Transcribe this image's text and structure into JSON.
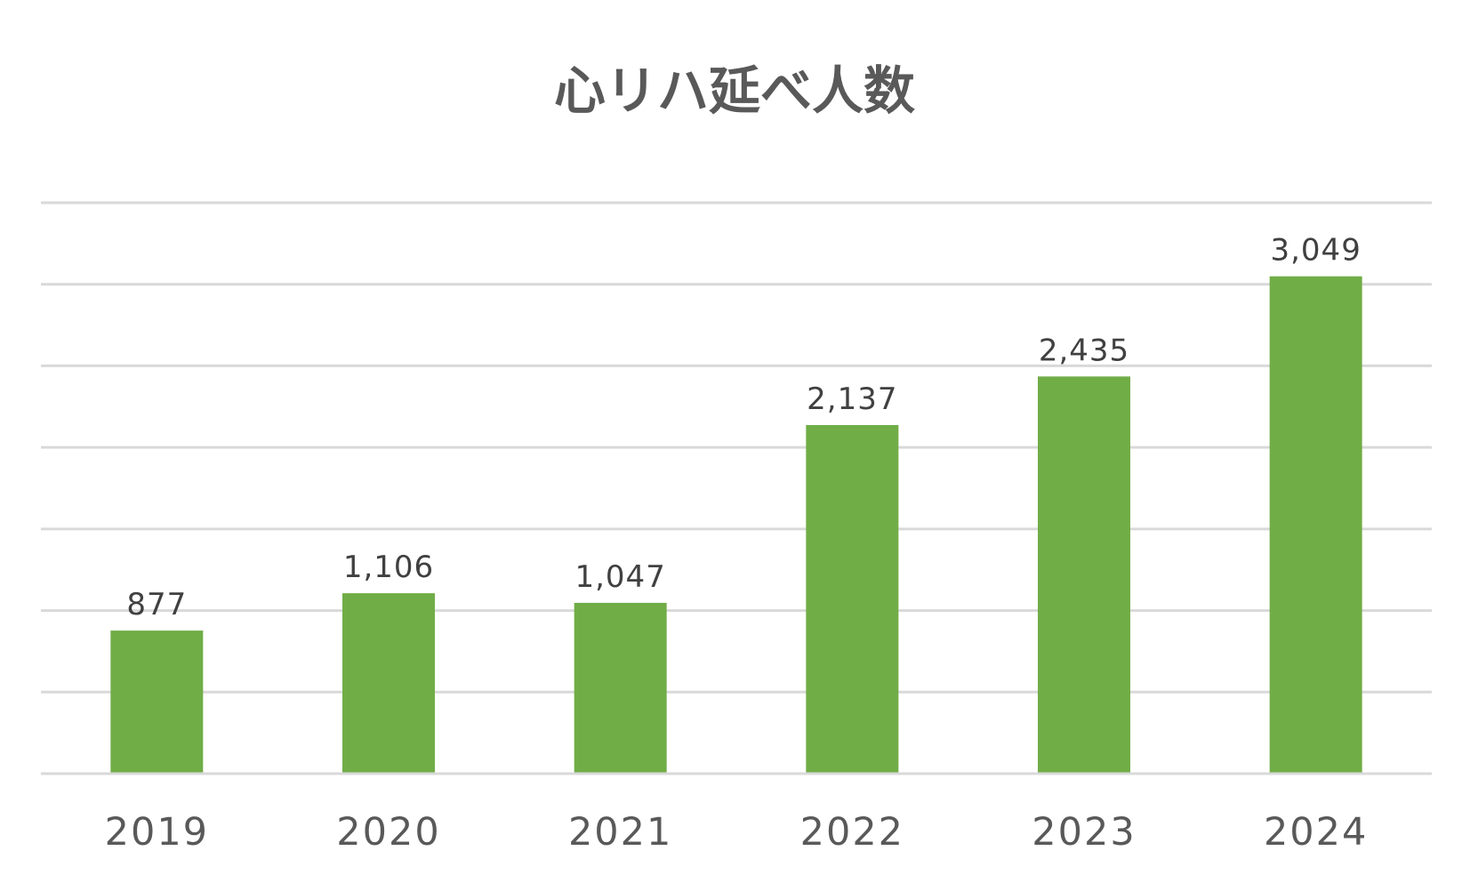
{
  "chart_data": {
    "type": "bar",
    "title": "心リハ延べ人数",
    "categories": [
      "2019",
      "2020",
      "2021",
      "2022",
      "2023",
      "2024"
    ],
    "values": [
      877,
      1106,
      1047,
      2137,
      2435,
      3049
    ],
    "value_labels": [
      "877",
      "1,106",
      "1,047",
      "2,137",
      "2,435",
      "3,049"
    ],
    "ylim": [
      0,
      3500
    ],
    "y_major_step": 500,
    "grid": true,
    "legend": "none",
    "colors": {
      "bar": "#70ad47",
      "gridline": "#d9d9d9",
      "title": "#595959",
      "data_label": "#404040",
      "category_label": "#595959"
    }
  }
}
